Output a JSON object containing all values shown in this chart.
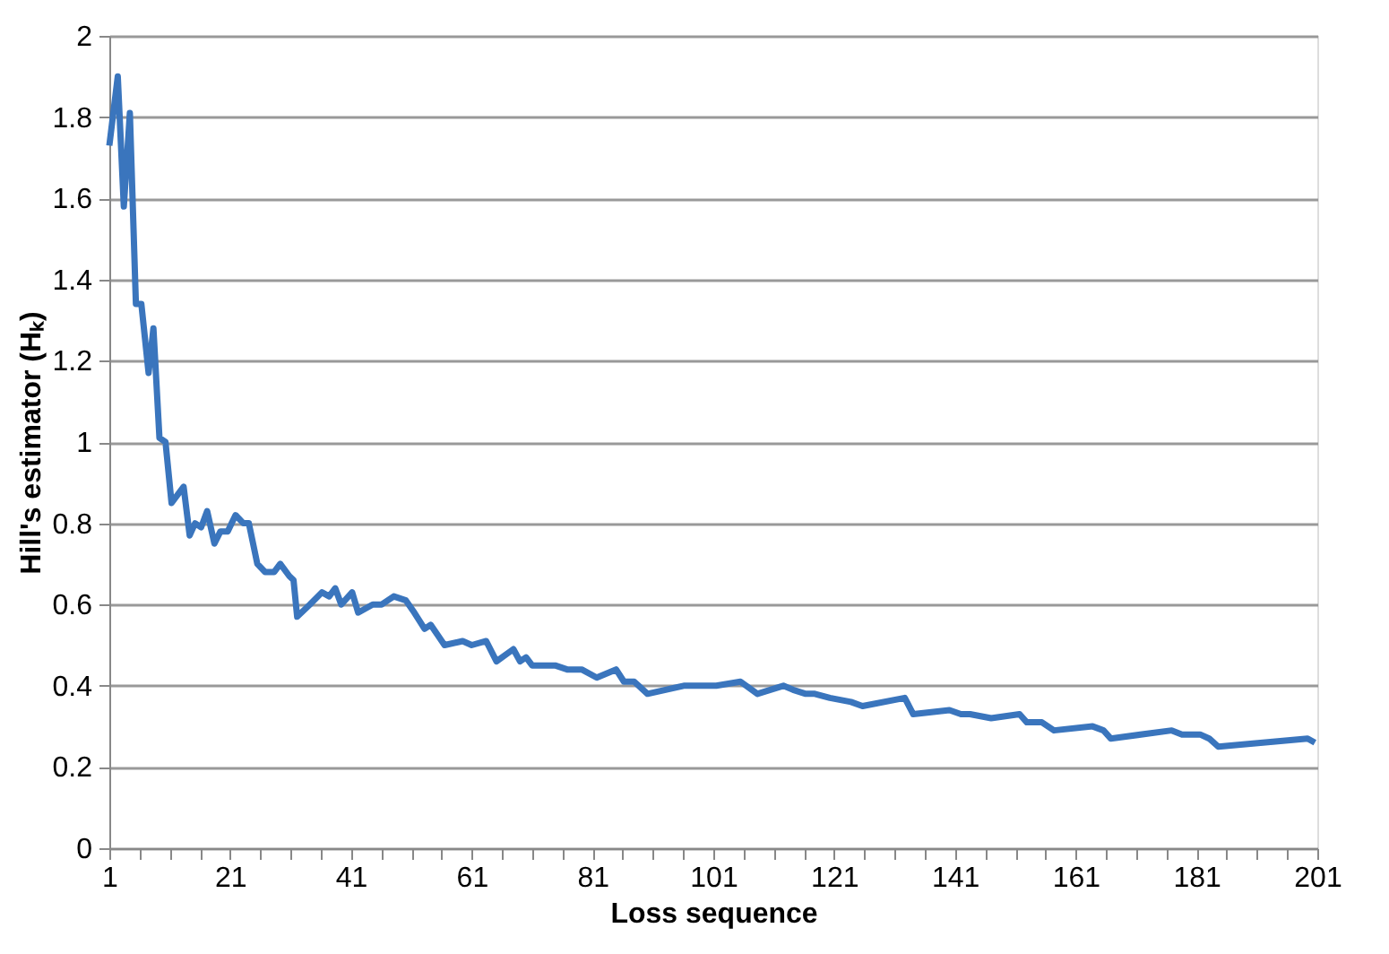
{
  "chart_data": {
    "type": "line",
    "xlabel": "Loss sequence",
    "ylabel": "Hill's estimator (Hₖ)",
    "series": [
      {
        "color": "#3a75bd",
        "x": [
          1,
          2.4,
          3.4,
          4.4,
          5.4,
          6.3,
          7.5,
          8.3,
          9.3,
          10.3,
          11.3,
          13.3,
          14.3,
          15.2,
          16.2,
          17.2,
          18.4,
          19.4,
          20.6,
          21.9,
          23.2,
          24.1,
          25.5,
          26.8,
          28.3,
          29.3,
          30.8,
          31.5,
          32.1,
          34.2,
          36.2,
          37.4,
          38.4,
          39.4,
          41.2,
          42.2,
          44.6,
          46.1,
          48.1,
          50.1,
          51.5,
          53.2,
          54.2,
          56.5,
          59.5,
          61,
          63.4,
          65.1,
          67.9,
          69,
          70,
          71,
          74.8,
          76.8,
          79.2,
          81.7,
          84.9,
          86.2,
          87.9,
          90.1,
          93.1,
          96.1,
          97.5,
          101.5,
          105.5,
          108.3,
          112.6,
          114.2,
          116.3,
          117.8,
          120.3,
          123.8,
          125.7,
          132.7,
          134.1,
          140.1,
          142,
          143.5,
          147,
          151.7,
          152.9,
          155.4,
          157.4,
          163.8,
          165.6,
          166.8,
          176.9,
          178.6,
          181.6,
          183.1,
          184.6,
          199.4,
          200.6
        ],
        "values": [
          1.73,
          1.9,
          1.58,
          1.81,
          1.34,
          1.34,
          1.17,
          1.28,
          1.01,
          1.0,
          0.85,
          0.89,
          0.77,
          0.8,
          0.79,
          0.83,
          0.75,
          0.78,
          0.78,
          0.82,
          0.8,
          0.8,
          0.7,
          0.68,
          0.68,
          0.7,
          0.67,
          0.66,
          0.57,
          0.6,
          0.63,
          0.62,
          0.64,
          0.6,
          0.63,
          0.58,
          0.6,
          0.6,
          0.62,
          0.61,
          0.58,
          0.54,
          0.55,
          0.5,
          0.51,
          0.5,
          0.51,
          0.46,
          0.49,
          0.46,
          0.47,
          0.45,
          0.45,
          0.44,
          0.44,
          0.42,
          0.44,
          0.41,
          0.41,
          0.38,
          0.39,
          0.4,
          0.4,
          0.4,
          0.41,
          0.38,
          0.4,
          0.39,
          0.38,
          0.38,
          0.37,
          0.36,
          0.35,
          0.37,
          0.33,
          0.34,
          0.33,
          0.33,
          0.32,
          0.33,
          0.31,
          0.31,
          0.29,
          0.3,
          0.29,
          0.27,
          0.29,
          0.28,
          0.28,
          0.27,
          0.25,
          0.27,
          0.26
        ]
      }
    ],
    "xlim": [
      1,
      201
    ],
    "xticks": [
      1,
      {
        "value": 6,
        "label": null
      },
      {
        "value": 11,
        "label": null
      },
      {
        "value": 16,
        "label": null
      },
      21,
      {
        "value": 26,
        "label": null
      },
      {
        "value": 31,
        "label": null
      },
      {
        "value": 36,
        "label": null
      },
      41,
      {
        "value": 46,
        "label": null
      },
      {
        "value": 51,
        "label": null
      },
      {
        "value": 56,
        "label": null
      },
      61,
      {
        "value": 66,
        "label": null
      },
      {
        "value": 71,
        "label": null
      },
      {
        "value": 76,
        "label": null
      },
      81,
      {
        "value": 86,
        "label": null
      },
      {
        "value": 91,
        "label": null
      },
      {
        "value": 96,
        "label": null
      },
      101,
      {
        "value": 106,
        "label": null
      },
      {
        "value": 111,
        "label": null
      },
      {
        "value": 116,
        "label": null
      },
      121,
      {
        "value": 126,
        "label": null
      },
      {
        "value": 131,
        "label": null
      },
      {
        "value": 136,
        "label": null
      },
      141,
      {
        "value": 146,
        "label": null
      },
      {
        "value": 151,
        "label": null
      },
      {
        "value": 156,
        "label": null
      },
      161,
      {
        "value": 166,
        "label": null
      },
      {
        "value": 171,
        "label": null
      },
      {
        "value": 176,
        "label": null
      },
      181,
      {
        "value": 186,
        "label": null
      },
      {
        "value": 191,
        "label": null
      },
      {
        "value": 196,
        "label": null
      },
      201
    ],
    "ylim": [
      0,
      2
    ],
    "yticks": [
      0,
      0.2,
      0.4,
      0.6,
      0.8,
      1,
      1.2,
      1.4,
      1.6,
      1.8,
      2
    ],
    "grid": "y",
    "marker": "none",
    "line_style": "solid"
  }
}
